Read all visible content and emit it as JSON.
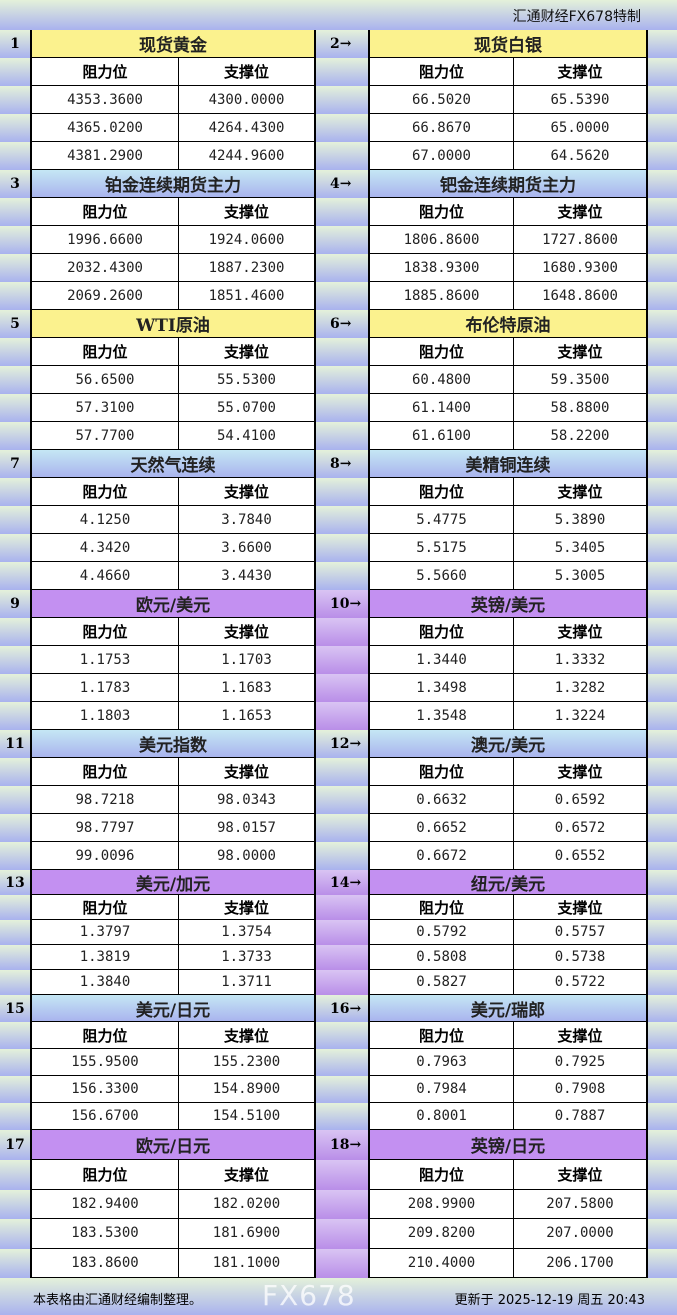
{
  "header": {
    "brand": "汇通财经FX678特制"
  },
  "columns": {
    "resistance": "阻力位",
    "support": "支撑位"
  },
  "colors": {
    "commodity_title": "#fbf28e",
    "futures_title": "#b8cef0",
    "fx_title": "#c390f1"
  },
  "blocks": [
    {
      "num": "1",
      "title": "现货黄金",
      "style": "yellow",
      "rows": [
        [
          "4353.3600",
          "4300.0000"
        ],
        [
          "4365.0200",
          "4264.4300"
        ],
        [
          "4381.2900",
          "4244.9600"
        ]
      ]
    },
    {
      "num": "2→",
      "title": "现货白银",
      "style": "yellow",
      "rows": [
        [
          "66.5020",
          "65.5390"
        ],
        [
          "66.8670",
          "65.0000"
        ],
        [
          "67.0000",
          "64.5620"
        ]
      ]
    },
    {
      "num": "3",
      "title": "铂金连续期货主力",
      "style": "blue",
      "rows": [
        [
          "1996.6600",
          "1924.0600"
        ],
        [
          "2032.4300",
          "1887.2300"
        ],
        [
          "2069.2600",
          "1851.4600"
        ]
      ]
    },
    {
      "num": "4→",
      "title": "钯金连续期货主力",
      "style": "blue",
      "rows": [
        [
          "1806.8600",
          "1727.8600"
        ],
        [
          "1838.9300",
          "1680.9300"
        ],
        [
          "1885.8600",
          "1648.8600"
        ]
      ]
    },
    {
      "num": "5",
      "title": "WTI原油",
      "style": "yellow",
      "rows": [
        [
          "56.6500",
          "55.5300"
        ],
        [
          "57.3100",
          "55.0700"
        ],
        [
          "57.7700",
          "54.4100"
        ]
      ]
    },
    {
      "num": "6→",
      "title": "布伦特原油",
      "style": "yellow",
      "rows": [
        [
          "60.4800",
          "59.3500"
        ],
        [
          "61.1400",
          "58.8800"
        ],
        [
          "61.6100",
          "58.2200"
        ]
      ]
    },
    {
      "num": "7",
      "title": "天然气连续",
      "style": "blue",
      "rows": [
        [
          "4.1250",
          "3.7840"
        ],
        [
          "4.3420",
          "3.6600"
        ],
        [
          "4.4660",
          "3.4430"
        ]
      ]
    },
    {
      "num": "8→",
      "title": "美精铜连续",
      "style": "blue",
      "rows": [
        [
          "5.4775",
          "5.3890"
        ],
        [
          "5.5175",
          "5.3405"
        ],
        [
          "5.5660",
          "5.3005"
        ]
      ]
    },
    {
      "num": "9",
      "title": "欧元/美元",
      "style": "purple",
      "rows": [
        [
          "1.1753",
          "1.1703"
        ],
        [
          "1.1783",
          "1.1683"
        ],
        [
          "1.1803",
          "1.1653"
        ]
      ]
    },
    {
      "num": "10→",
      "title": "英镑/美元",
      "style": "purple",
      "rows": [
        [
          "1.3440",
          "1.3332"
        ],
        [
          "1.3498",
          "1.3282"
        ],
        [
          "1.3548",
          "1.3224"
        ]
      ]
    },
    {
      "num": "11",
      "title": "美元指数",
      "style": "blue",
      "rows": [
        [
          "98.7218",
          "98.0343"
        ],
        [
          "98.7797",
          "98.0157"
        ],
        [
          "99.0096",
          "98.0000"
        ]
      ]
    },
    {
      "num": "12→",
      "title": "澳元/美元",
      "style": "blue",
      "rows": [
        [
          "0.6632",
          "0.6592"
        ],
        [
          "0.6652",
          "0.6572"
        ],
        [
          "0.6672",
          "0.6552"
        ]
      ]
    },
    {
      "num": "13",
      "title": "美元/加元",
      "style": "purple",
      "rows": [
        [
          "1.3797",
          "1.3754"
        ],
        [
          "1.3819",
          "1.3733"
        ],
        [
          "1.3840",
          "1.3711"
        ]
      ]
    },
    {
      "num": "14→",
      "title": "纽元/美元",
      "style": "purple",
      "rows": [
        [
          "0.5792",
          "0.5757"
        ],
        [
          "0.5808",
          "0.5738"
        ],
        [
          "0.5827",
          "0.5722"
        ]
      ]
    },
    {
      "num": "15",
      "title": "美元/日元",
      "style": "blue",
      "rows": [
        [
          "155.9500",
          "155.2300"
        ],
        [
          "156.3300",
          "154.8900"
        ],
        [
          "156.6700",
          "154.5100"
        ]
      ]
    },
    {
      "num": "16→",
      "title": "美元/瑞郎",
      "style": "blue",
      "rows": [
        [
          "0.7963",
          "0.7925"
        ],
        [
          "0.7984",
          "0.7908"
        ],
        [
          "0.8001",
          "0.7887"
        ]
      ]
    },
    {
      "num": "17",
      "title": "欧元/日元",
      "style": "purple",
      "rows": [
        [
          "182.9400",
          "182.0200"
        ],
        [
          "183.5300",
          "181.6900"
        ],
        [
          "183.8600",
          "181.1000"
        ]
      ]
    },
    {
      "num": "18→",
      "title": "英镑/日元",
      "style": "purple",
      "rows": [
        [
          "208.9900",
          "207.5800"
        ],
        [
          "209.8200",
          "207.0000"
        ],
        [
          "210.4000",
          "206.1700"
        ]
      ]
    }
  ],
  "footer": {
    "note": "本表格由汇通财经编制整理。",
    "updated": "更新于 2025-12-19 周五 20:43",
    "watermark": "FX678"
  }
}
